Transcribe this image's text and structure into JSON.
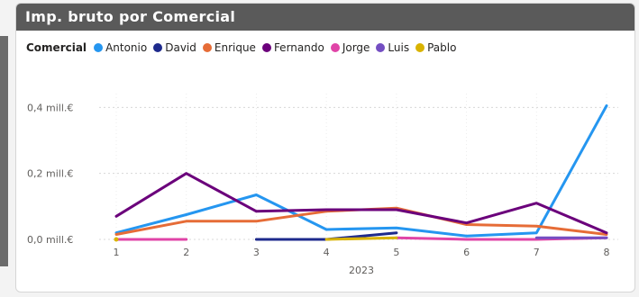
{
  "header": {
    "title": "Imp. bruto por Comercial"
  },
  "legend": {
    "title": "Comercial"
  },
  "chart_data": {
    "type": "line",
    "title": "Imp. bruto por Comercial",
    "xlabel": "2023",
    "ylabel": "",
    "x": [
      1,
      2,
      3,
      4,
      5,
      6,
      7,
      8
    ],
    "x_tick_labels": [
      "1",
      "2",
      "3",
      "4",
      "5",
      "6",
      "7",
      "8"
    ],
    "y_ticks": [
      0,
      0.2,
      0.4
    ],
    "y_tick_labels": [
      "0,0 mill.€",
      "0,2 mill.€",
      "0,4 mill.€"
    ],
    "ylim": [
      0,
      0.42
    ],
    "grid": true,
    "legend_position": "top-left",
    "series": [
      {
        "name": "Antonio",
        "color": "#2596f0",
        "values": [
          0.02,
          0.075,
          0.135,
          0.03,
          0.035,
          0.01,
          0.02,
          0.405
        ]
      },
      {
        "name": "David",
        "color": "#1e2a8c",
        "values": [
          null,
          null,
          0.0,
          0.0,
          0.02,
          null,
          null,
          null
        ]
      },
      {
        "name": "Enrique",
        "color": "#e66c37",
        "values": [
          0.015,
          0.055,
          0.055,
          0.085,
          0.095,
          0.045,
          0.04,
          0.015
        ]
      },
      {
        "name": "Fernando",
        "color": "#6b007b",
        "values": [
          0.07,
          0.2,
          0.085,
          0.09,
          0.09,
          0.05,
          0.11,
          0.02
        ]
      },
      {
        "name": "Jorge",
        "color": "#e044a7",
        "values": [
          0.0,
          0.0,
          null,
          null,
          0.005,
          0.0,
          0.0,
          0.005
        ]
      },
      {
        "name": "Luis",
        "color": "#744ec2",
        "values": [
          null,
          null,
          null,
          null,
          null,
          null,
          0.005,
          0.005
        ]
      },
      {
        "name": "Pablo",
        "color": "#d9b300",
        "values": [
          0.0,
          null,
          null,
          0.0,
          0.005,
          null,
          null,
          null
        ]
      }
    ]
  }
}
